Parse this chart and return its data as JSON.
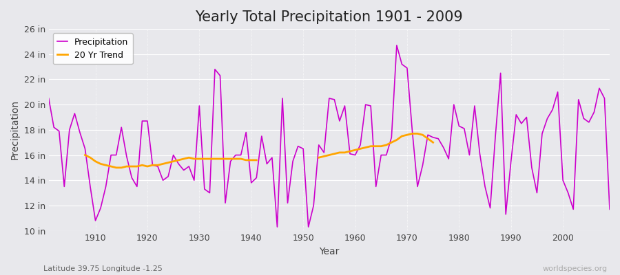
{
  "title": "Yearly Total Precipitation 1901 - 2009",
  "xlabel": "Year",
  "ylabel": "Precipitation",
  "background_color": "#e8e8ec",
  "plot_background_color": "#e8e8ec",
  "precip_color": "#cc00cc",
  "trend_color": "#ffa500",
  "years": [
    1901,
    1902,
    1903,
    1904,
    1905,
    1906,
    1907,
    1908,
    1909,
    1910,
    1911,
    1912,
    1913,
    1914,
    1915,
    1916,
    1917,
    1918,
    1919,
    1920,
    1921,
    1922,
    1923,
    1924,
    1925,
    1926,
    1927,
    1928,
    1929,
    1930,
    1931,
    1932,
    1933,
    1934,
    1935,
    1936,
    1937,
    1938,
    1939,
    1940,
    1941,
    1942,
    1943,
    1944,
    1945,
    1946,
    1947,
    1948,
    1949,
    1950,
    1951,
    1952,
    1953,
    1954,
    1955,
    1956,
    1957,
    1958,
    1959,
    1960,
    1961,
    1962,
    1963,
    1964,
    1965,
    1966,
    1967,
    1968,
    1969,
    1970,
    1971,
    1972,
    1973,
    1974,
    1975,
    1976,
    1977,
    1978,
    1979,
    1980,
    1981,
    1982,
    1983,
    1984,
    1985,
    1986,
    1987,
    1988,
    1989,
    1990,
    1991,
    1992,
    1993,
    1994,
    1995,
    1996,
    1997,
    1998,
    1999,
    2000,
    2001,
    2002,
    2003,
    2004,
    2005,
    2006,
    2007,
    2008,
    2009
  ],
  "precipitation": [
    20.5,
    18.2,
    17.9,
    13.5,
    18.0,
    19.3,
    17.8,
    16.5,
    13.5,
    10.8,
    11.8,
    13.5,
    16.0,
    16.0,
    18.2,
    15.9,
    14.2,
    13.5,
    18.7,
    18.7,
    15.2,
    15.1,
    14.0,
    14.3,
    16.0,
    15.3,
    14.8,
    15.1,
    14.0,
    19.9,
    13.3,
    13.0,
    22.8,
    22.3,
    12.2,
    15.5,
    16.0,
    16.0,
    17.8,
    13.8,
    14.2,
    17.5,
    15.3,
    15.8,
    10.3,
    20.5,
    12.2,
    15.5,
    16.7,
    16.5,
    10.3,
    12.0,
    16.8,
    16.2,
    20.5,
    20.4,
    18.7,
    19.9,
    16.1,
    16.0,
    16.8,
    20.0,
    19.9,
    13.5,
    16.0,
    16.0,
    17.4,
    24.7,
    23.2,
    22.9,
    17.9,
    13.5,
    15.2,
    17.6,
    17.4,
    17.3,
    16.6,
    15.7,
    20.0,
    18.3,
    18.1,
    16.0,
    19.9,
    16.1,
    13.5,
    11.8,
    17.5,
    22.5,
    11.3,
    15.5,
    19.2,
    18.5,
    19.0,
    15.0,
    13.0,
    17.7,
    18.9,
    19.6,
    21.0,
    14.0,
    13.0,
    11.7,
    20.4,
    18.9,
    18.6,
    19.4,
    21.3,
    20.5,
    11.7
  ],
  "trend_years_seg1": [
    1908,
    1909,
    1910,
    1911,
    1912,
    1913,
    1914,
    1915,
    1916,
    1917,
    1918,
    1919,
    1920,
    1921,
    1922,
    1923,
    1924,
    1925,
    1926,
    1927,
    1928,
    1929,
    1930,
    1931,
    1932,
    1933,
    1934,
    1935,
    1936,
    1937,
    1938,
    1939,
    1940,
    1941
  ],
  "trend_values_seg1": [
    16.0,
    15.8,
    15.5,
    15.3,
    15.2,
    15.1,
    15.0,
    15.0,
    15.1,
    15.1,
    15.1,
    15.2,
    15.1,
    15.2,
    15.2,
    15.3,
    15.4,
    15.5,
    15.6,
    15.7,
    15.8,
    15.7,
    15.7,
    15.7,
    15.7,
    15.7,
    15.7,
    15.7,
    15.7,
    15.7,
    15.7,
    15.6,
    15.6,
    15.6
  ],
  "trend_years_seg2": [
    1953,
    1954,
    1955,
    1956,
    1957,
    1958,
    1959,
    1960,
    1961,
    1962,
    1963,
    1964,
    1965,
    1966,
    1967,
    1968,
    1969,
    1970,
    1971,
    1972,
    1973,
    1974,
    1975
  ],
  "trend_values_seg2": [
    15.8,
    15.9,
    16.0,
    16.1,
    16.2,
    16.2,
    16.3,
    16.4,
    16.5,
    16.6,
    16.7,
    16.7,
    16.7,
    16.8,
    17.0,
    17.2,
    17.5,
    17.6,
    17.7,
    17.7,
    17.6,
    17.3,
    17.0
  ],
  "ylim": [
    10,
    26
  ],
  "yticks": [
    10,
    12,
    14,
    16,
    18,
    20,
    22,
    24,
    26
  ],
  "ytick_labels": [
    "10 in",
    "12 in",
    "14 in",
    "16 in",
    "18 in",
    "20 in",
    "22 in",
    "24 in",
    "26 in"
  ],
  "xticks": [
    1910,
    1920,
    1930,
    1940,
    1950,
    1960,
    1970,
    1980,
    1990,
    2000
  ],
  "subtitle": "Latitude 39.75 Longitude -1.25",
  "watermark": "worldspecies.org",
  "figsize": [
    9.0,
    4.0
  ],
  "dpi": 100,
  "grid_color": "#ffffff",
  "title_fontsize": 15,
  "axis_label_fontsize": 10,
  "tick_fontsize": 9,
  "legend_fontsize": 9
}
